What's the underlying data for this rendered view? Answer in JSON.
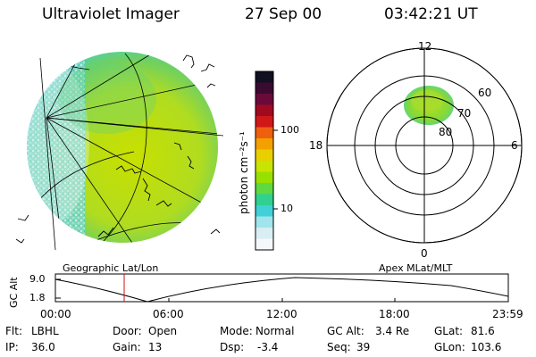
{
  "header": {
    "instrument": "Ultraviolet Imager",
    "date": "27 Sep 00",
    "time": "03:42:21 UT"
  },
  "colorbar": {
    "unit": "photon cm⁻²s⁻¹",
    "ticks": [
      "100",
      "10"
    ],
    "colors": [
      "#101020",
      "#3a0a30",
      "#6a0a3a",
      "#a00a20",
      "#d01818",
      "#ee6010",
      "#f4a000",
      "#e8d000",
      "#c8e400",
      "#98e000",
      "#60d840",
      "#30d090",
      "#40d0d8",
      "#a0e4ec",
      "#d8eef2",
      "#f4f8fa"
    ]
  },
  "left_panel": {
    "caption": "Geographic Lat/Lon"
  },
  "right_panel": {
    "caption": "Apex MLat/MLT",
    "mlt_labels": {
      "top": "12",
      "bottom": "0",
      "left": "18",
      "right": "6"
    },
    "mlat_labels": [
      "60",
      "70",
      "80"
    ]
  },
  "altitude_plot": {
    "ylabel": "GC Alt",
    "y_ticks": [
      "9.0",
      "1.8"
    ],
    "x_ticks": [
      "00:00",
      "06:00",
      "12:00",
      "18:00",
      "23:59"
    ],
    "marker_color": "#d01010"
  },
  "status": {
    "row1": [
      {
        "label": "Flt:",
        "value": "LBHL"
      },
      {
        "label": "Door:",
        "value": "Open"
      },
      {
        "label": "Mode:",
        "value": "Normal"
      },
      {
        "label": "GC Alt:",
        "value": "3.4 Re"
      },
      {
        "label": "GLat:",
        "value": "81.6"
      }
    ],
    "row2": [
      {
        "label": "IP:",
        "value": "36.0"
      },
      {
        "label": "Gain:",
        "value": "13"
      },
      {
        "label": "Dsp:",
        "value": "-3.4"
      },
      {
        "label": "Seq:",
        "value": "39"
      },
      {
        "label": "GLon:",
        "value": "103.6"
      }
    ]
  }
}
